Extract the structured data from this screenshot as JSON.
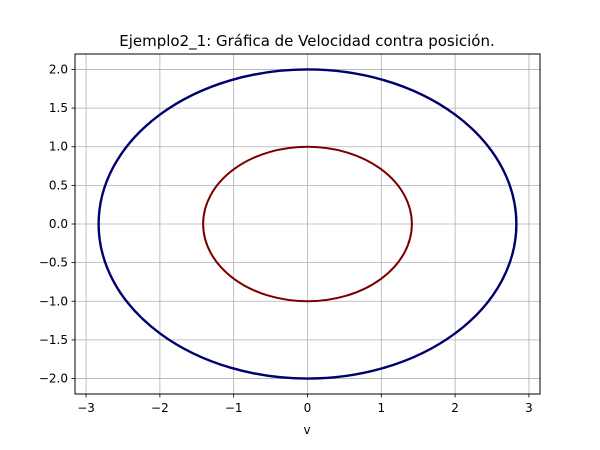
{
  "chart_data": {
    "type": "line",
    "title": "Ejemplo2_1: Gráfica de Velocidad contra posición.",
    "xlabel": "v",
    "ylabel": "",
    "xlim": [
      -3.15,
      3.15
    ],
    "ylim": [
      -2.2,
      2.2
    ],
    "xticks": [
      -3,
      -2,
      -1,
      0,
      1,
      2,
      3
    ],
    "xtick_labels": [
      "−3",
      "−2",
      "−1",
      "0",
      "1",
      "2",
      "3"
    ],
    "yticks": [
      -2.0,
      -1.5,
      -1.0,
      -0.5,
      0.0,
      0.5,
      1.0,
      1.5,
      2.0
    ],
    "ytick_labels": [
      "−2.0",
      "−1.5",
      "−1.0",
      "−0.5",
      "0.0",
      "0.5",
      "1.0",
      "1.5",
      "2.0"
    ],
    "grid": true,
    "series": [
      {
        "shape": "ellipse",
        "center": [
          0,
          0
        ],
        "semi_axis_x": 2.83,
        "semi_axis_y": 2.0,
        "color": "#00006e",
        "stroke_width": 2.4
      },
      {
        "shape": "ellipse",
        "center": [
          0,
          0
        ],
        "semi_axis_x": 1.414,
        "semi_axis_y": 1.0,
        "color": "#7a0000",
        "stroke_width": 2.0
      }
    ]
  }
}
